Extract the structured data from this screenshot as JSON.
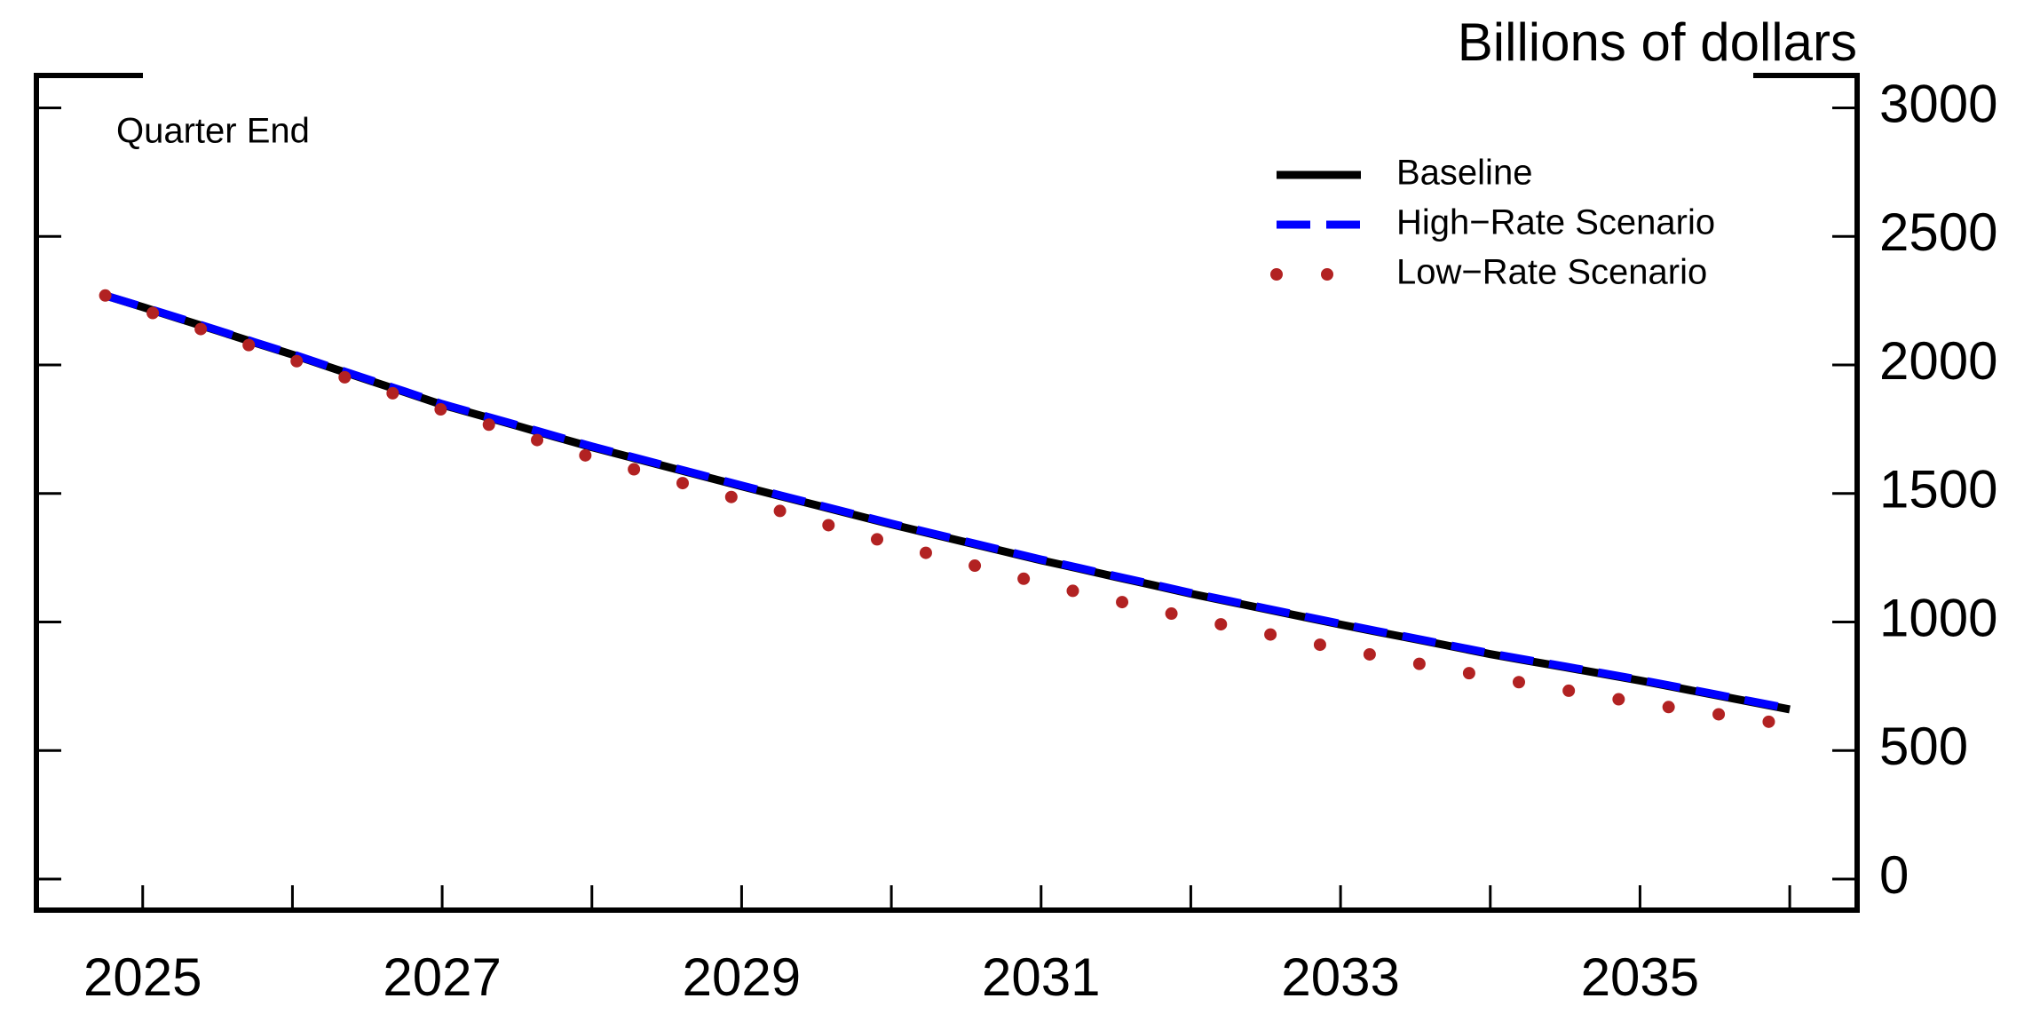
{
  "chart_data": {
    "type": "line",
    "y_axis_label": "Billions of dollars",
    "annotation": "Quarter End",
    "x": [
      2024.75,
      2025,
      2025.25,
      2025.5,
      2025.75,
      2026,
      2026.25,
      2026.5,
      2026.75,
      2027,
      2027.25,
      2027.5,
      2027.75,
      2028,
      2028.25,
      2028.5,
      2028.75,
      2029,
      2029.25,
      2029.5,
      2029.75,
      2030,
      2030.25,
      2030.5,
      2030.75,
      2031,
      2031.25,
      2031.5,
      2031.75,
      2032,
      2032.25,
      2032.5,
      2032.75,
      2033,
      2033.25,
      2033.5,
      2033.75,
      2034,
      2034.25,
      2034.5,
      2034.75,
      2035,
      2035.25,
      2035.5,
      2035.75,
      2036
    ],
    "series": [
      {
        "name": "Baseline",
        "color": "#000000",
        "style": "solid",
        "values": [
          2270,
          2225,
          2179,
          2133,
          2086,
          2040,
          1991,
          1942,
          1894,
          1845,
          1804,
          1763,
          1721,
          1680,
          1642,
          1604,
          1566,
          1528,
          1491,
          1454,
          1417,
          1380,
          1345,
          1310,
          1275,
          1240,
          1208,
          1175,
          1143,
          1110,
          1080,
          1050,
          1020,
          990,
          961,
          933,
          904,
          875,
          849,
          824,
          798,
          772,
          744,
          716,
          688,
          660
        ]
      },
      {
        "name": "High−Rate Scenario",
        "color": "#0000ff",
        "style": "dashed",
        "values": [
          2270,
          2226,
          2181,
          2135,
          2088,
          2042,
          1993,
          1945,
          1897,
          1848,
          1807,
          1766,
          1724,
          1683,
          1645,
          1607,
          1569,
          1531,
          1494,
          1457,
          1420,
          1383,
          1348,
          1313,
          1278,
          1243,
          1211,
          1178,
          1146,
          1113,
          1083,
          1053,
          1023,
          993,
          964,
          936,
          907,
          878,
          852,
          827,
          801,
          775,
          747,
          719,
          691,
          663
        ]
      },
      {
        "name": "Low−Rate Scenario",
        "color": "#b22222",
        "style": "dotted",
        "values": [
          2270,
          2215,
          2166,
          2118,
          2069,
          2020,
          1971,
          1923,
          1874,
          1825,
          1779,
          1733,
          1686,
          1640,
          1599,
          1558,
          1516,
          1475,
          1433,
          1390,
          1348,
          1305,
          1266,
          1228,
          1189,
          1150,
          1116,
          1083,
          1049,
          1015,
          985,
          955,
          925,
          895,
          868,
          840,
          813,
          785,
          760,
          735,
          710,
          685,
          664,
          643,
          621,
          600
        ]
      }
    ],
    "xlim": [
      2024.29,
      2036.45
    ],
    "xticks": [
      2025,
      2027,
      2029,
      2031,
      2033,
      2035
    ],
    "xminor_ticks": [
      2026,
      2028,
      2030,
      2032,
      2034,
      2036
    ],
    "ylim": [
      -121,
      3126
    ],
    "yticks": [
      0,
      500,
      1000,
      1500,
      2000,
      2500,
      3000
    ],
    "y_axis_side": "right",
    "legend_position": "top-right"
  }
}
